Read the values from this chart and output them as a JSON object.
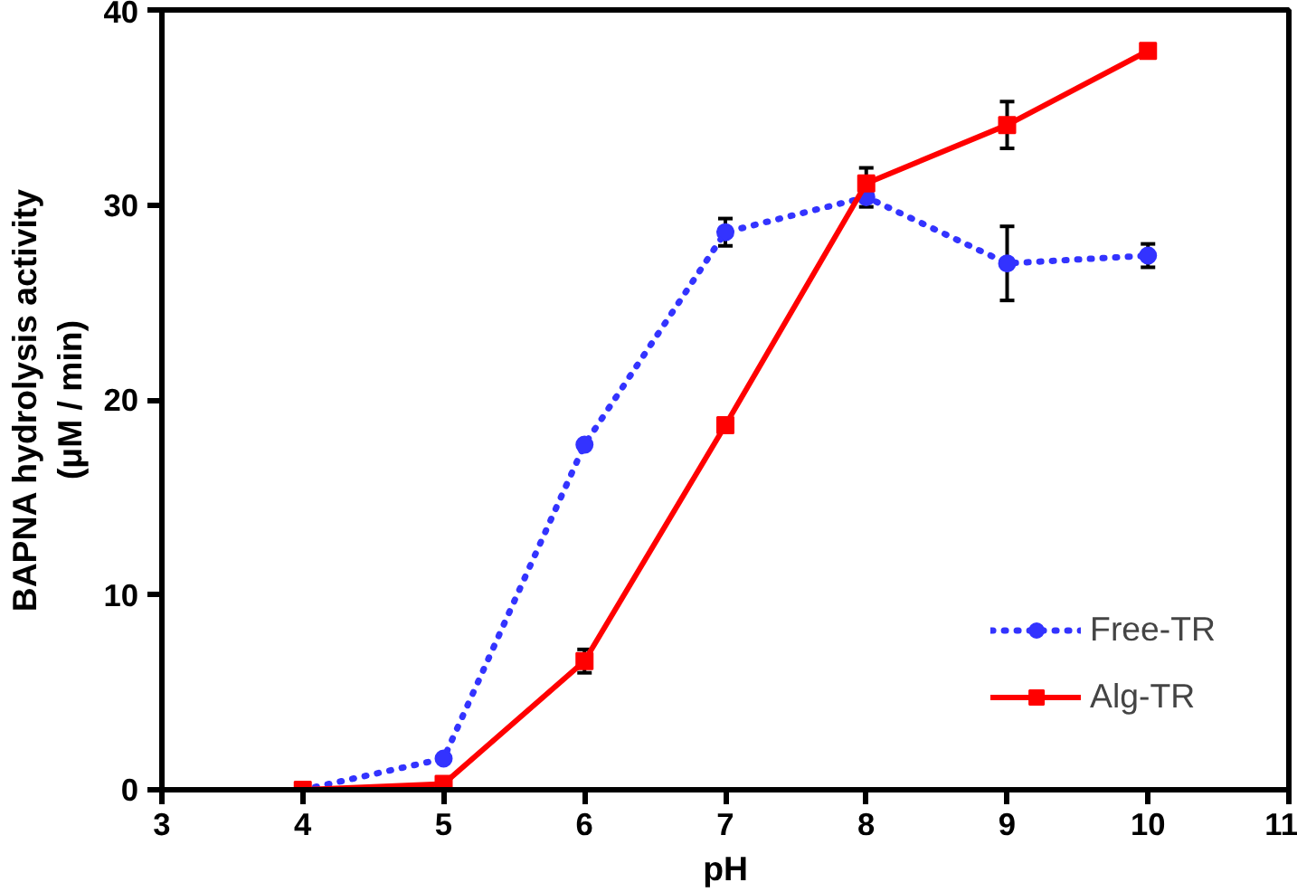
{
  "chart_data": {
    "type": "line",
    "xlabel": "pH",
    "ylabel": "BAPNA hydrolysis activity\n(μM / min)",
    "x": [
      4,
      5,
      6,
      7,
      8,
      9,
      10
    ],
    "series": [
      {
        "name": "Free-TR",
        "color": "#3333ff",
        "marker": "circle",
        "line_style": "dotted",
        "values": [
          0,
          1.6,
          17.7,
          28.6,
          30.4,
          27.0,
          27.4
        ],
        "errors": [
          null,
          null,
          null,
          0.7,
          0.5,
          1.9,
          0.6
        ]
      },
      {
        "name": "Alg-TR",
        "color": "#ff0000",
        "marker": "square",
        "line_style": "solid",
        "values": [
          0,
          0.3,
          6.6,
          18.7,
          31.1,
          34.1,
          37.9
        ],
        "errors": [
          null,
          null,
          0.6,
          null,
          0.8,
          1.2,
          null
        ]
      }
    ],
    "xlim": [
      3,
      11
    ],
    "xticks": [
      3,
      4,
      5,
      6,
      7,
      8,
      9,
      10,
      11
    ],
    "ylim": [
      0,
      40
    ],
    "yticks": [
      0,
      10,
      20,
      30,
      40
    ],
    "grid": false,
    "legend": "bottom right"
  }
}
